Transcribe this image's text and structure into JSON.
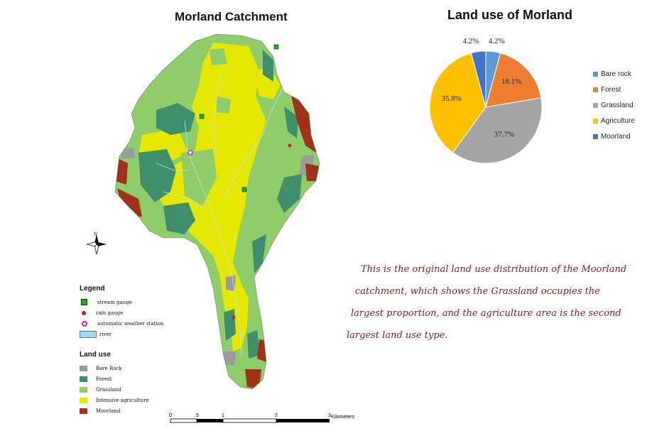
{
  "map": {
    "title": "Morland Catchment",
    "north_label": "N",
    "legend_title": "Legend",
    "legend_items": [
      {
        "label": "stream gauge",
        "color": "#22aa22"
      },
      {
        "label": "rain gauge",
        "color": "#cc2222"
      },
      {
        "label": "automatic weather station",
        "color": "#cc22cc"
      },
      {
        "label": "river",
        "color": "#a9d8f5"
      }
    ],
    "landuse_title": "Land use",
    "landuse_items": [
      {
        "label": "Bare Rock",
        "color": "#9b9b9b"
      },
      {
        "label": "Forest",
        "color": "#3f8f6a"
      },
      {
        "label": "Grassland",
        "color": "#8fcc6a"
      },
      {
        "label": "Intensive agriculture",
        "color": "#e5e800"
      },
      {
        "label": "Moorland",
        "color": "#a0321a"
      }
    ],
    "scale_ticks": [
      "0",
      ".5",
      "1",
      "2",
      "3"
    ],
    "scale_unit": "Kilometers"
  },
  "chart_data": {
    "type": "pie",
    "title": "Land use of Morland",
    "slices": [
      {
        "name": "Bare rock",
        "value": 4.2,
        "label": "4.2%",
        "color": "#5b9bd5"
      },
      {
        "name": "Forest",
        "value": 18.1,
        "label": "18.1%",
        "color": "#ed7d31"
      },
      {
        "name": "Grassland",
        "value": 37.7,
        "label": "37.7%",
        "color": "#a5a5a5"
      },
      {
        "name": "Agriculture",
        "value": 35.8,
        "label": "35.8%",
        "color": "#ffc000"
      },
      {
        "name": "Moorland",
        "value": 4.2,
        "label": "4.2%",
        "color": "#4472c4"
      }
    ],
    "legend": [
      "Bare rock",
      "Forest",
      "Grassland",
      "Agriculture",
      "Moorland"
    ],
    "legend_position": "right"
  },
  "annotation": {
    "lines": [
      "This is the original land use distribution of the Moorland",
      "catchment, which shows the Grassland occupies the",
      "largest proportion, and the agriculture area is the second",
      "largest land use type."
    ]
  }
}
